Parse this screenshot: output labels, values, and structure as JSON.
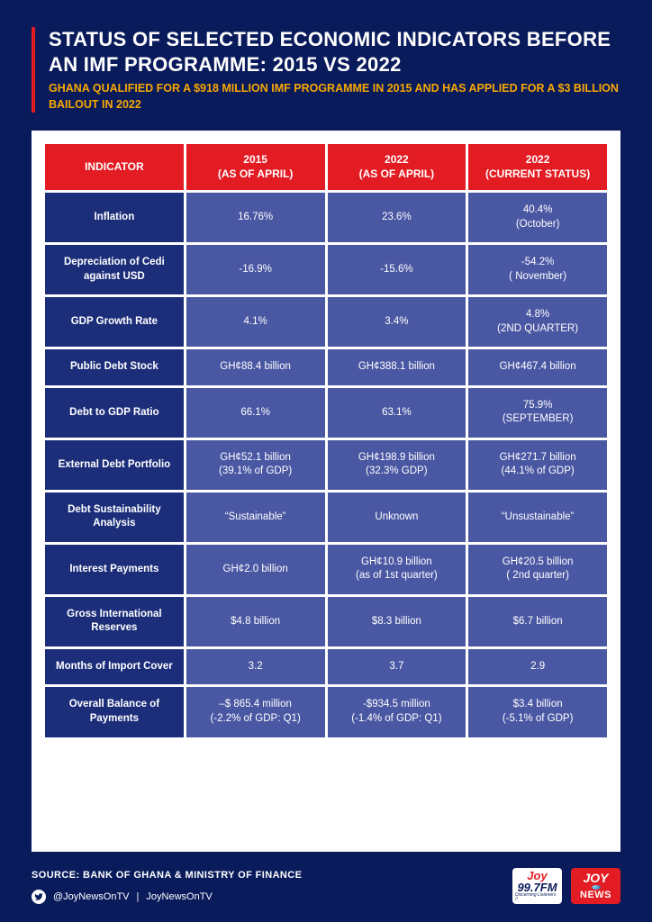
{
  "colors": {
    "page_bg": "#0a1b5c",
    "accent_red": "#e31b23",
    "accent_yellow": "#f7a800",
    "cell_indicator": "#1c2e7a",
    "cell_value": "#4a57a3",
    "white": "#ffffff"
  },
  "header": {
    "title": "STATUS OF SELECTED ECONOMIC INDICATORS BEFORE AN IMF PROGRAMME: 2015 VS 2022",
    "subtitle": "GHANA QUALIFIED FOR A $918 MILLION IMF PROGRAMME IN 2015 AND HAS APPLIED FOR A $3 BILLION BAILOUT IN 2022"
  },
  "table": {
    "columns": [
      "INDICATOR",
      "2015\n(AS OF APRIL)",
      "2022\n(AS OF APRIL)",
      "2022\n(CURRENT STATUS)"
    ],
    "rows": [
      [
        "Inflation",
        "16.76%",
        "23.6%",
        "40.4%\n(October)"
      ],
      [
        "Depreciation of Cedi against USD",
        "-16.9%",
        "-15.6%",
        "-54.2%\n( November)"
      ],
      [
        "GDP Growth Rate",
        "4.1%",
        "3.4%",
        "4.8%\n(2ND QUARTER)"
      ],
      [
        "Public Debt Stock",
        "GH¢88.4 billion",
        "GH¢388.1 billion",
        "GH¢467.4 billion"
      ],
      [
        "Debt to GDP Ratio",
        "66.1%",
        "63.1%",
        "75.9%\n(SEPTEMBER)"
      ],
      [
        "External Debt Portfolio",
        "GH¢52.1 billion\n(39.1% of GDP)",
        "GH¢198.9 billion\n(32.3% GDP)",
        "GH¢271.7 billion\n(44.1% of GDP)"
      ],
      [
        "Debt Sustainability Analysis",
        "“Sustainable”",
        "Unknown",
        "“Unsustainable”"
      ],
      [
        "Interest Payments",
        "GH¢2.0 billion",
        "GH¢10.9 billion\n(as of 1st quarter)",
        "GH¢20.5 billion\n( 2nd quarter)"
      ],
      [
        "Gross International Reserves",
        "$4.8 billion",
        "$8.3 billion",
        "$6.7 billion"
      ],
      [
        "Months of Import Cover",
        "3.2",
        "3.7",
        "2.9"
      ],
      [
        "Overall Balance of Payments",
        "–$ 865.4 million\n(-2.2% of GDP: Q1)",
        "-$934.5 million\n(-1.4% of GDP: Q1)",
        "$3.4 billion\n(-5.1% of GDP)"
      ]
    ]
  },
  "footer": {
    "source": "SOURCE: BANK OF GHANA & MINISTRY OF FINANCE",
    "twitter_handle": "@JoyNewsOnTV",
    "site": "JoyNewsOnTV",
    "logo_fm": {
      "joy": "Joy",
      "freq": "99.7FM",
      "tag": "Discerning Listeners !!"
    },
    "logo_news": {
      "joy": "JOY",
      "news": "NEWS"
    }
  }
}
